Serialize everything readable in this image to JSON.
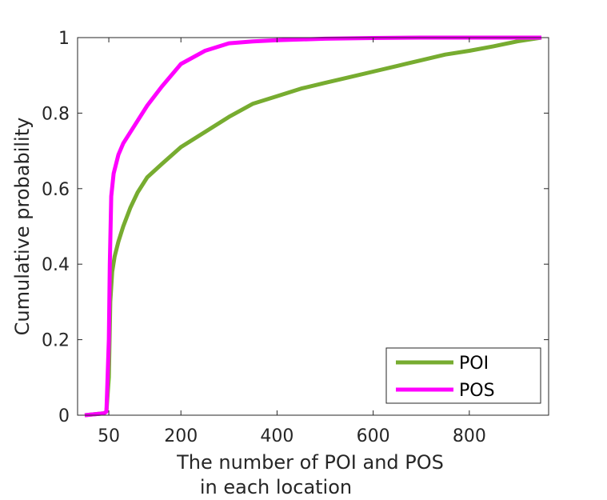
{
  "chart_data": {
    "type": "line",
    "xlabel": [
      "The number of POI and POS",
      "in each location"
    ],
    "ylabel": "Cumulative probability",
    "xlim": [
      -15,
      965
    ],
    "ylim": [
      0,
      1
    ],
    "x_ticks": [
      50,
      200,
      400,
      600,
      800
    ],
    "y_ticks": [
      0,
      0.2,
      0.4,
      0.6,
      0.8,
      1
    ],
    "y_tick_labels": [
      "0",
      "0.2",
      "0.4",
      "0.6",
      "0.8",
      "1"
    ],
    "grid": false,
    "legend_position": "bottom-right",
    "series": [
      {
        "name": "POI",
        "color": "#77ac30",
        "x": [
          0,
          40,
          45,
          50,
          53,
          57,
          62,
          70,
          80,
          95,
          110,
          130,
          160,
          200,
          250,
          300,
          350,
          400,
          450,
          500,
          550,
          600,
          650,
          700,
          750,
          800,
          850,
          900,
          950
        ],
        "y": [
          0,
          0.005,
          0.01,
          0.1,
          0.3,
          0.38,
          0.42,
          0.46,
          0.5,
          0.55,
          0.59,
          0.63,
          0.665,
          0.71,
          0.75,
          0.79,
          0.825,
          0.845,
          0.865,
          0.88,
          0.895,
          0.91,
          0.925,
          0.94,
          0.955,
          0.965,
          0.977,
          0.99,
          1.0
        ]
      },
      {
        "name": "POS",
        "color": "#ff00ff",
        "x": [
          0,
          40,
          45,
          50,
          52,
          55,
          60,
          70,
          80,
          100,
          130,
          160,
          200,
          250,
          300,
          350,
          400,
          500,
          600,
          700,
          800,
          950
        ],
        "y": [
          0,
          0.005,
          0.01,
          0.2,
          0.4,
          0.58,
          0.64,
          0.69,
          0.72,
          0.76,
          0.82,
          0.87,
          0.93,
          0.965,
          0.985,
          0.99,
          0.993,
          0.997,
          0.999,
          1.0,
          1.0,
          1.0
        ]
      }
    ]
  }
}
